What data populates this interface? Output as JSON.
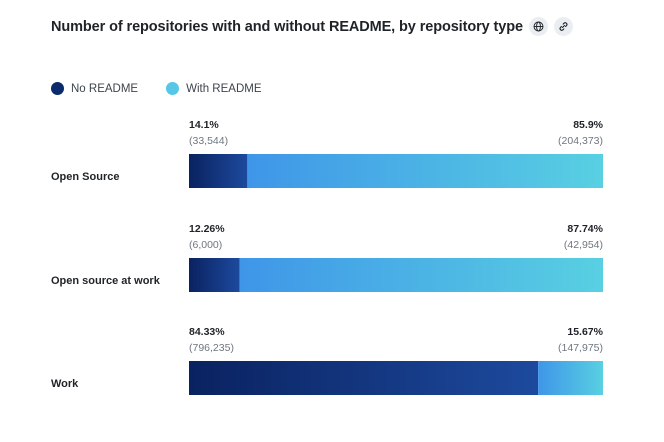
{
  "chart_data": {
    "type": "bar",
    "orientation": "horizontal-stacked-100",
    "title": "Number of repositories with and without README, by repository type",
    "legend": [
      {
        "name": "No README",
        "color": "#0b2a6b"
      },
      {
        "name": "With README",
        "color": "#56c7e6"
      }
    ],
    "categories": [
      "Open Source",
      "Open source at work",
      "Work"
    ],
    "series": [
      {
        "name": "No README",
        "values": [
          14.1,
          12.26,
          84.33
        ],
        "value_labels": [
          "14.1%",
          "12.26%",
          "84.33%"
        ],
        "count_labels": [
          "(33,544)",
          "(6,000)",
          "(796,235)"
        ]
      },
      {
        "name": "With README",
        "values": [
          85.9,
          87.74,
          15.67
        ],
        "value_labels": [
          "85.9%",
          "87.74%",
          "15.67%"
        ],
        "count_labels": [
          "(204,373)",
          "(42,954)",
          "(147,975)"
        ]
      }
    ],
    "xlim": [
      0,
      100
    ],
    "legend_position": "top-left"
  },
  "icons": {
    "globe": "globe-icon",
    "link": "link-icon"
  }
}
